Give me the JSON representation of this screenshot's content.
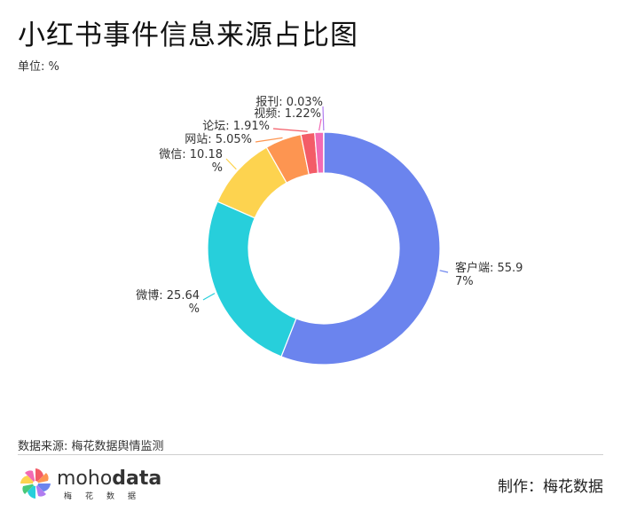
{
  "header": {
    "title": "小红书事件信息来源占比图",
    "unit": "单位: %"
  },
  "footer": {
    "source": "数据来源: 梅花数据舆情监测",
    "credit": "制作：梅花数据",
    "logo_light": "moho",
    "logo_bold": "data",
    "logo_sub": "梅花数据"
  },
  "chart_data": {
    "type": "pie",
    "variant": "donut",
    "title": "小红书事件信息来源占比图",
    "unit": "%",
    "slices": [
      {
        "name": "客户端",
        "value": 55.97,
        "label_lines": [
          "客户端: 55.9",
          "7%"
        ],
        "color": "#6b84ee"
      },
      {
        "name": "微博",
        "value": 25.64,
        "label_lines": [
          "微博: 25.64",
          "%"
        ],
        "color": "#27cfdb"
      },
      {
        "name": "微信",
        "value": 10.18,
        "label_lines": [
          "微信: 10.18",
          "%"
        ],
        "color": "#fdd34f"
      },
      {
        "name": "网站",
        "value": 5.05,
        "label_lines": [
          "网站: 5.05%"
        ],
        "color": "#fd9551"
      },
      {
        "name": "论坛",
        "value": 1.91,
        "label_lines": [
          "论坛: 1.91%"
        ],
        "color": "#f35c67"
      },
      {
        "name": "视频",
        "value": 1.22,
        "label_lines": [
          "视频: 1.22%"
        ],
        "color": "#f26bb4"
      },
      {
        "name": "报刊",
        "value": 0.03,
        "label_lines": [
          "报刊: 0.03%"
        ],
        "color": "#b07cf0"
      }
    ]
  }
}
